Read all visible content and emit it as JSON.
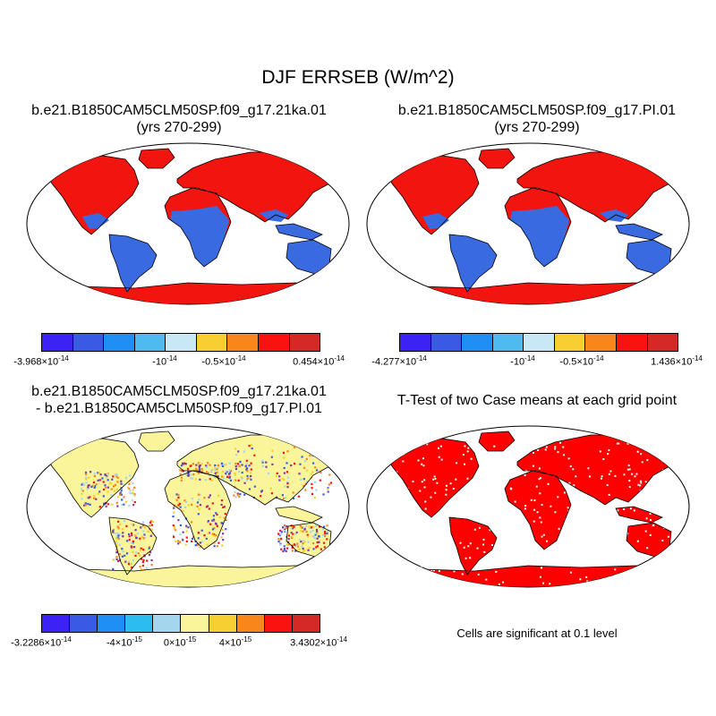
{
  "title": "DJF ERRSEB (W/m^2)",
  "panels": {
    "case1": {
      "line1": "b.e21.B1850CAM5CLM50SP.f09_g17.21ka.01",
      "line2": "(yrs 270-299)"
    },
    "case2": {
      "line1": "b.e21.B1850CAM5CLM50SP.f09_g17.PI.01",
      "line2": "(yrs 270-299)"
    },
    "diff": {
      "line1": "b.e21.B1850CAM5CLM50SP.f09_g17.21ka.01",
      "line2": "- b.e21.B1850CAM5CLM50SP.f09_g17.PI.01"
    },
    "ttest": {
      "line1": "T-Test of two Case means at each grid point"
    }
  },
  "significance_note": "Cells are significant at 0.1 level",
  "colors": {
    "seq9": [
      "#3b22f5",
      "#3a5ae6",
      "#1f8ff5",
      "#4fbaf0",
      "#c8e8f5",
      "#f8cf30",
      "#f8861a",
      "#fa1210",
      "#d32a28"
    ],
    "div10": [
      "#3b22f5",
      "#3a5ae6",
      "#1f8ff5",
      "#2bbcf0",
      "#a4d6ee",
      "#faf59a",
      "#f8cf30",
      "#f8861a",
      "#fa1210",
      "#d32a28"
    ],
    "land_dry": "#f2150f",
    "land_wet": "#3a6ae0",
    "ttest_sig": "#ff0000"
  },
  "colorbars": {
    "case1": {
      "labels": [
        "-3.968×10^-14",
        "-10^-14",
        "-0.5×10^-14",
        "0.454×10^-14"
      ]
    },
    "case2": {
      "labels": [
        "-4.277×10^-14",
        "-10^-14",
        "-0.5×10^-14",
        "1.436×10^-14"
      ]
    },
    "diff": {
      "labels": [
        "-3.2286×10^-14",
        "-4×10^-15",
        "0×10^-15",
        "4×10^-15",
        "3.4302×10^-14"
      ]
    }
  }
}
